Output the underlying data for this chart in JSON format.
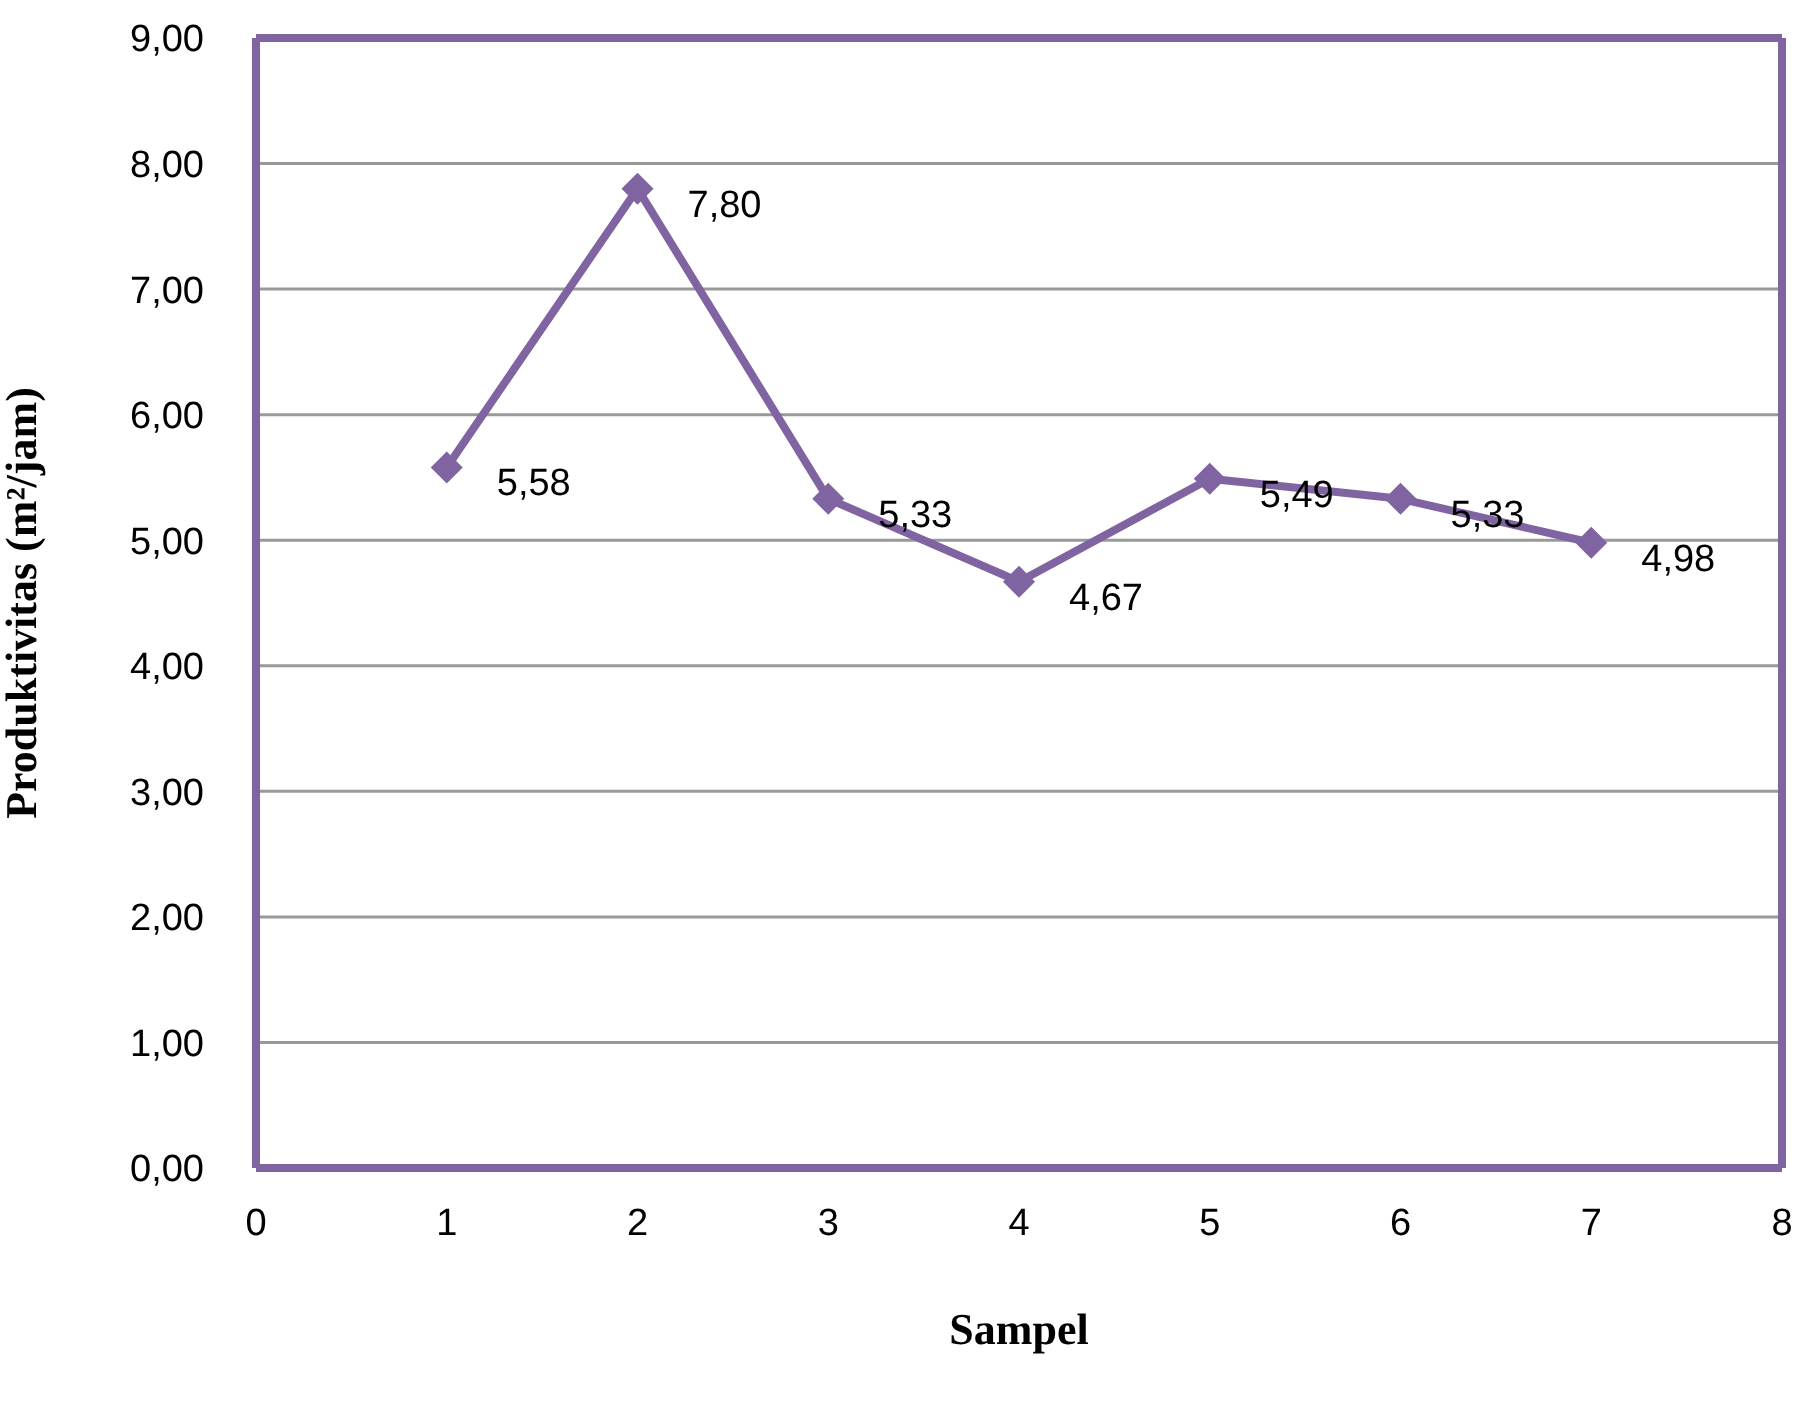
{
  "chart_data": {
    "type": "line",
    "xlabel": "Sampel",
    "ylabel": "Produktivitas (m²/jam)",
    "x": [
      1,
      2,
      3,
      4,
      5,
      6,
      7
    ],
    "series": [
      {
        "color": "#8064a2",
        "values": [
          5.58,
          7.8,
          5.33,
          4.67,
          5.49,
          5.33,
          4.98
        ],
        "value_labels": [
          "5,58",
          "7,80",
          "5,33",
          "4,67",
          "5,49",
          "5,33",
          "4,98"
        ]
      }
    ],
    "xlim": [
      0,
      8
    ],
    "xticks": [
      0,
      1,
      2,
      3,
      4,
      5,
      6,
      7,
      8
    ],
    "ylim": [
      0,
      9
    ],
    "yticks": [
      {
        "value": 0,
        "label": "0,00"
      },
      {
        "value": 1,
        "label": "1,00"
      },
      {
        "value": 2,
        "label": "2,00"
      },
      {
        "value": 3,
        "label": "3,00"
      },
      {
        "value": 4,
        "label": "4,00"
      },
      {
        "value": 5,
        "label": "5,00"
      },
      {
        "value": 6,
        "label": "6,00"
      },
      {
        "value": 7,
        "label": "7,00"
      },
      {
        "value": 8,
        "label": "8,00"
      },
      {
        "value": 9,
        "label": "9,00"
      }
    ],
    "grid": "y",
    "marker": "diamond",
    "line_style": "solid"
  }
}
